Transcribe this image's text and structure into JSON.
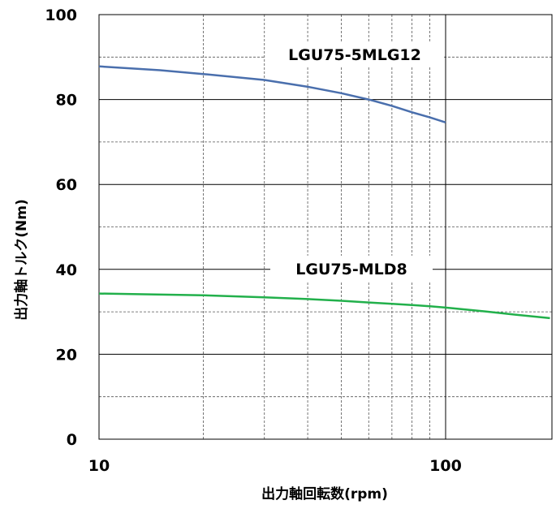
{
  "chart_data": {
    "type": "line",
    "xscale": "log",
    "xlim": [
      10,
      200
    ],
    "ylim": [
      0,
      100
    ],
    "xlabel": "出力軸回転数(rpm)",
    "ylabel": "出力軸トルク(Nm)",
    "x_ticks": [
      "10",
      "100"
    ],
    "y_ticks": [
      "0",
      "20",
      "40",
      "60",
      "80",
      "100"
    ],
    "grid": true,
    "series": [
      {
        "name": "LGU75-5MLG12",
        "color": "#4a6fad",
        "x": [
          10,
          15,
          20,
          30,
          40,
          50,
          60,
          70,
          80,
          90,
          100
        ],
        "y": [
          87.8,
          86.9,
          86.0,
          84.6,
          83.0,
          81.5,
          80.0,
          78.5,
          77.0,
          75.8,
          74.6
        ]
      },
      {
        "name": "LGU75-MLD8",
        "color": "#22b04b",
        "x": [
          10,
          20,
          30,
          40,
          50,
          60,
          70,
          80,
          90,
          100,
          130,
          160,
          200
        ],
        "y": [
          34.3,
          33.9,
          33.4,
          33.0,
          32.6,
          32.2,
          31.9,
          31.6,
          31.3,
          31.0,
          30.1,
          29.3,
          28.5
        ]
      }
    ]
  }
}
